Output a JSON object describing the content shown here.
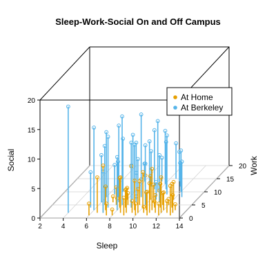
{
  "chart_data": {
    "type": "scatter",
    "projection": "3d",
    "title": "Sleep-Work-Social On and Off Campus",
    "xlabel": "Sleep",
    "ylabel": "Work",
    "zlabel": "Social",
    "xlim": [
      2,
      14
    ],
    "ylim": [
      0,
      20
    ],
    "zlim": [
      0,
      20
    ],
    "x_ticks": [
      "2",
      "4",
      "6",
      "8",
      "10",
      "12",
      "14"
    ],
    "y_ticks": [
      "0",
      "5",
      "10",
      "15",
      "20"
    ],
    "z_ticks": [
      "0",
      "5",
      "10",
      "15",
      "20"
    ],
    "grid": true,
    "drop_lines": true,
    "legend_position": "top-right",
    "series": [
      {
        "name": "At Home",
        "color": "#E69F00",
        "points": [
          [
            7,
            2,
            8
          ],
          [
            7.5,
            1,
            2
          ],
          [
            8,
            3,
            2
          ],
          [
            8.5,
            4,
            3
          ],
          [
            9,
            2,
            4
          ],
          [
            9.5,
            3,
            5
          ],
          [
            10,
            2,
            4
          ],
          [
            10.5,
            3,
            3
          ],
          [
            11,
            2,
            5
          ],
          [
            11.5,
            4,
            4
          ],
          [
            12,
            3,
            3
          ],
          [
            12.5,
            2,
            2
          ],
          [
            8,
            1,
            1
          ],
          [
            9,
            1,
            3
          ],
          [
            10,
            1,
            2
          ],
          [
            11,
            1,
            4
          ],
          [
            12,
            1,
            2
          ],
          [
            13,
            2,
            3
          ],
          [
            8.5,
            5,
            2
          ],
          [
            9.5,
            5,
            4
          ],
          [
            10.5,
            6,
            3
          ],
          [
            11.5,
            5,
            2
          ],
          [
            9,
            6,
            1
          ],
          [
            10,
            4,
            6
          ],
          [
            11,
            3,
            7
          ],
          [
            12,
            5,
            1
          ],
          [
            8,
            4,
            5
          ],
          [
            7,
            3,
            4
          ],
          [
            6.5,
            2,
            6
          ],
          [
            13,
            1,
            5
          ],
          [
            12.5,
            4,
            4
          ],
          [
            9.5,
            2,
            2
          ],
          [
            10.5,
            2,
            1
          ],
          [
            11.5,
            2,
            3
          ],
          [
            7.5,
            5,
            3
          ],
          [
            8,
            7,
            2
          ],
          [
            9,
            8,
            3
          ],
          [
            10,
            7,
            4
          ],
          [
            11,
            6,
            2
          ],
          [
            12,
            7,
            3
          ],
          [
            13,
            3,
            1
          ],
          [
            9,
            4,
            7
          ],
          [
            10,
            5,
            5
          ],
          [
            8.5,
            2,
            6
          ],
          [
            11,
            4,
            1
          ],
          [
            6,
            1,
            2
          ],
          [
            7,
            6,
            1
          ],
          [
            12,
            2,
            6
          ]
        ]
      },
      {
        "name": "At Berkeley",
        "color": "#56B4E9",
        "points": [
          [
            4,
            2,
            18
          ],
          [
            6,
            3,
            14
          ],
          [
            6.5,
            5,
            10
          ],
          [
            7,
            4,
            12
          ],
          [
            7,
            8,
            6
          ],
          [
            7.5,
            6,
            13
          ],
          [
            8,
            5,
            15
          ],
          [
            8,
            10,
            8
          ],
          [
            8.5,
            7,
            11
          ],
          [
            9,
            8,
            14
          ],
          [
            9,
            12,
            6
          ],
          [
            9.5,
            9,
            9
          ],
          [
            10,
            10,
            12
          ],
          [
            10,
            5,
            7
          ],
          [
            10.5,
            11,
            8
          ],
          [
            11,
            9,
            10
          ],
          [
            11,
            14,
            5
          ],
          [
            12,
            10,
            7
          ],
          [
            6,
            6,
            8
          ],
          [
            6.5,
            9,
            5
          ],
          [
            7.5,
            11,
            4
          ],
          [
            8.5,
            12,
            7
          ],
          [
            9.5,
            14,
            4
          ],
          [
            10.5,
            15,
            6
          ],
          [
            8,
            3,
            9
          ],
          [
            9,
            4,
            11
          ],
          [
            7,
            2,
            7
          ],
          [
            10,
            13,
            9
          ],
          [
            11.5,
            12,
            4
          ],
          [
            8,
            14,
            3
          ],
          [
            9,
            6,
            5
          ],
          [
            12.5,
            8,
            6
          ],
          [
            6,
            8,
            11
          ],
          [
            7,
            10,
            9
          ],
          [
            8.5,
            9,
            6
          ],
          [
            9.5,
            11,
            10
          ],
          [
            10.5,
            7,
            3
          ],
          [
            5.5,
            4,
            6
          ],
          [
            11,
            6,
            8
          ],
          [
            7.5,
            13,
            7
          ]
        ]
      }
    ]
  }
}
